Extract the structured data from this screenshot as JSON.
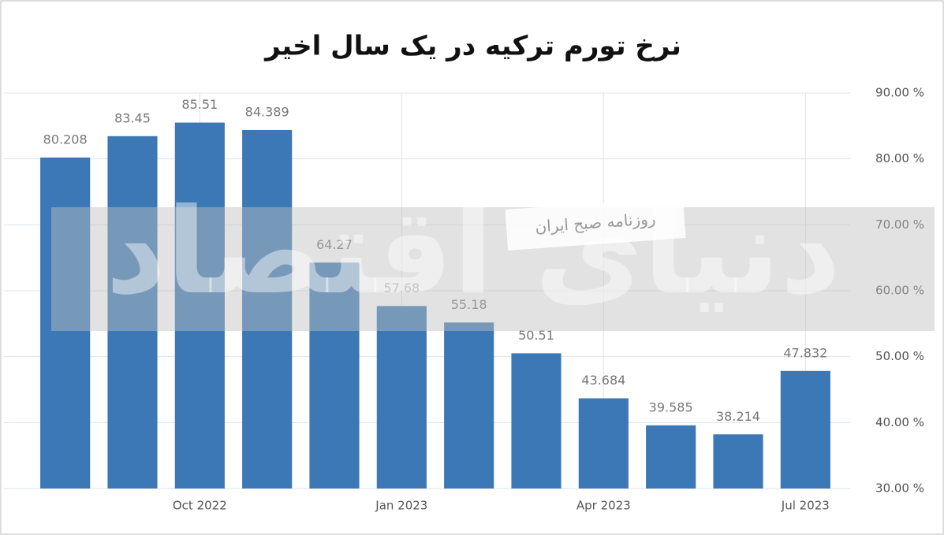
{
  "chart_data": {
    "type": "bar",
    "title": "نرخ تورم ترکیه در یک سال اخیر",
    "annotations": [
      "روزنامه صبح ایران",
      "دنیای اقتصاد"
    ],
    "categories": [
      null,
      null,
      "Oct 2022",
      null,
      null,
      "Jan 2023",
      null,
      null,
      "Apr 2023",
      null,
      null,
      "Jul 2023"
    ],
    "values": [
      80.208,
      83.45,
      85.51,
      84.389,
      64.27,
      57.68,
      55.18,
      50.51,
      43.684,
      39.585,
      38.214,
      47.832
    ],
    "color": "#3b78b5",
    "ylim": [
      30,
      90
    ],
    "yticks": [
      {
        "value": 30,
        "label": "30.00 %"
      },
      {
        "value": 40,
        "label": "40.00 %"
      },
      {
        "value": 50,
        "label": "50.00 %"
      },
      {
        "value": 60,
        "label": "60.00 %"
      },
      {
        "value": 70,
        "label": "70.00 %"
      },
      {
        "value": 80,
        "label": "80.00 %"
      },
      {
        "value": 90,
        "label": "90.00 %"
      }
    ],
    "grid": true
  }
}
